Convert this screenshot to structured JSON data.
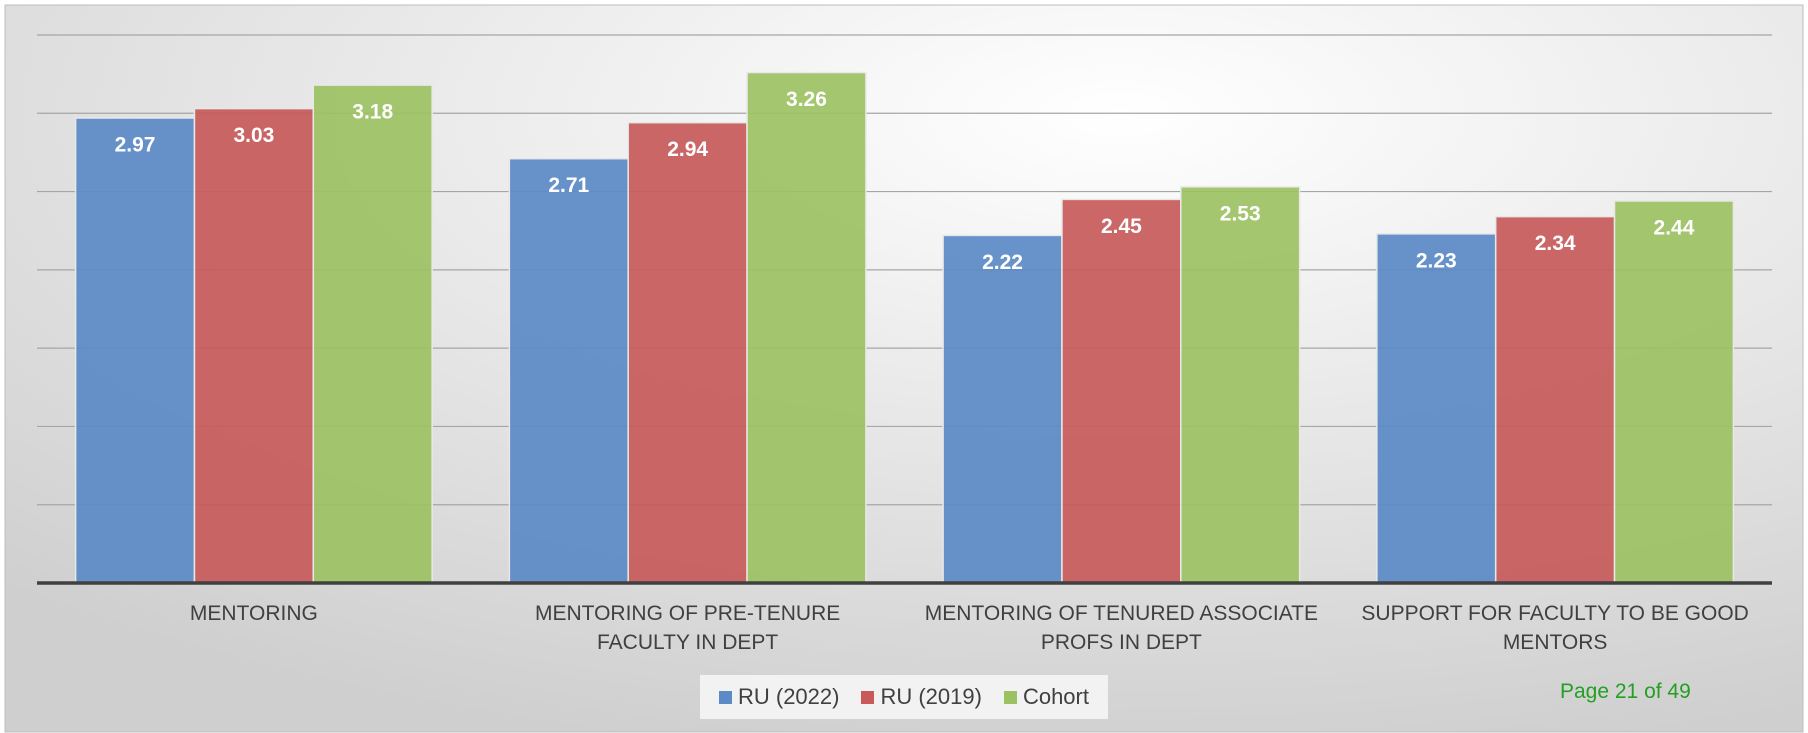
{
  "chart_data": {
    "type": "bar",
    "categories": [
      "MENTORING",
      "MENTORING OF PRE-TENURE FACULTY IN DEPT",
      "MENTORING OF TENURED ASSOCIATE PROFS IN DEPT",
      "SUPPORT FOR FACULTY TO BE GOOD MENTORS"
    ],
    "series": [
      {
        "name": "RU (2022)",
        "color": "#5b8ac6",
        "values": [
          2.97,
          2.71,
          2.22,
          2.23
        ]
      },
      {
        "name": "RU (2019)",
        "color": "#c85a5a",
        "values": [
          3.03,
          2.94,
          2.45,
          2.34
        ]
      },
      {
        "name": "Cohort",
        "color": "#9bc163",
        "values": [
          3.18,
          3.26,
          2.53,
          2.44
        ]
      }
    ],
    "ylim": [
      0,
      3.5
    ],
    "yticks": [
      0,
      0.5,
      1,
      1.5,
      2,
      2.5,
      3,
      3.5
    ],
    "grid": true,
    "legend": "bottom"
  },
  "page_label": "Page 21 of 49"
}
